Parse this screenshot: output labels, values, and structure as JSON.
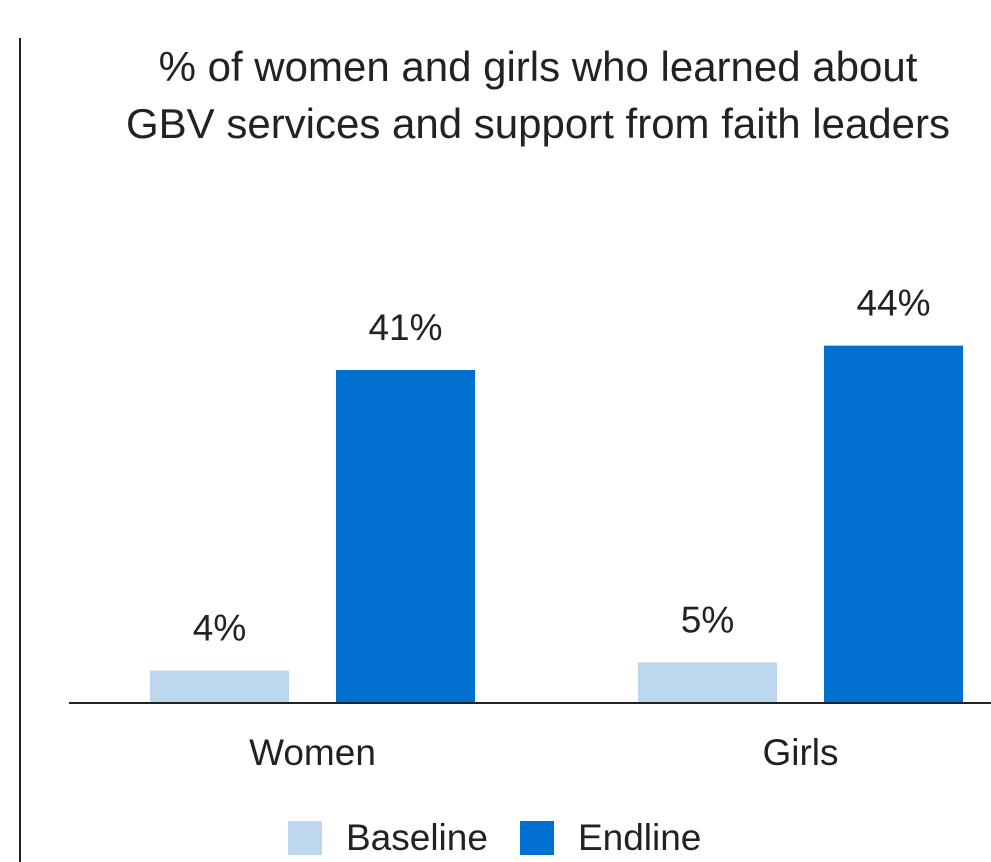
{
  "chart_data": {
    "type": "bar",
    "title": "% of women and girls who learned about GBV services and support from faith leaders",
    "categories": [
      "Women",
      "Girls"
    ],
    "series": [
      {
        "name": "Baseline",
        "values": [
          4,
          5
        ],
        "labels": [
          "4%",
          "5%"
        ],
        "color": "#bdd7ee"
      },
      {
        "name": "Endline",
        "values": [
          41,
          44
        ],
        "labels": [
          "41%",
          "44%"
        ],
        "color": "#0070d0"
      }
    ],
    "ylim": [
      0,
      50
    ],
    "grid": false,
    "legend": "bottom",
    "xlabel": "",
    "ylabel": ""
  }
}
